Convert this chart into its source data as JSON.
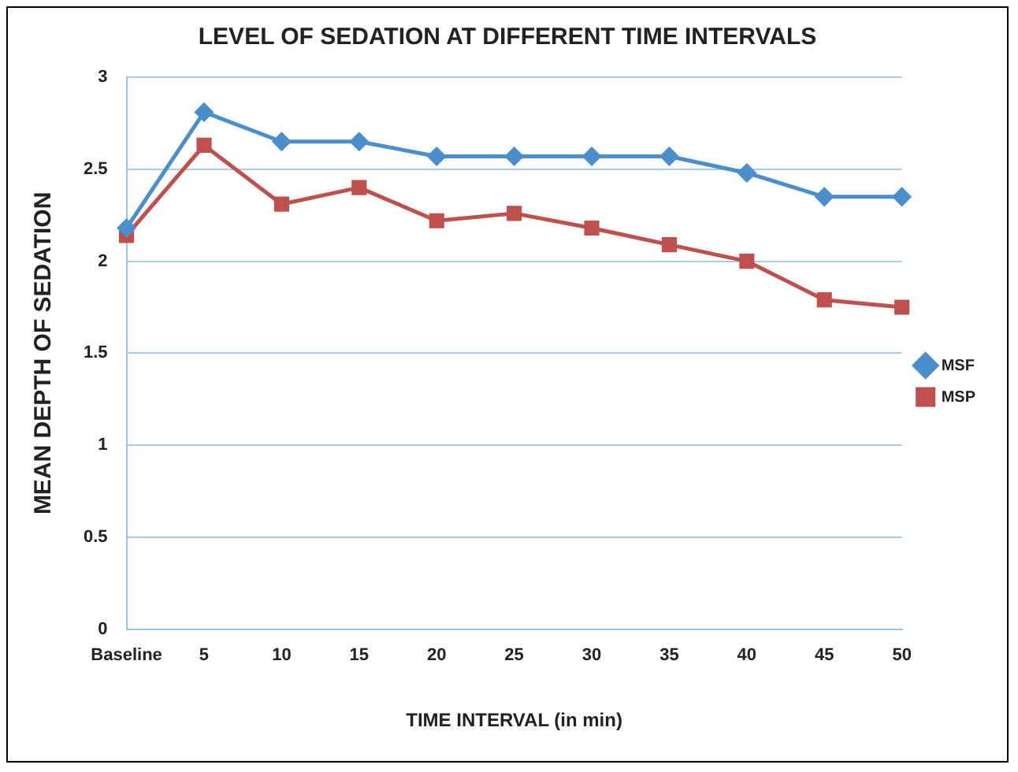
{
  "chart_data": {
    "type": "line",
    "title": "LEVEL OF SEDATION AT DIFFERENT TIME INTERVALS",
    "xlabel": "TIME INTERVAL (in min)",
    "ylabel": "MEAN DEPTH OF SEDATION",
    "categories": [
      "Baseline",
      "5",
      "10",
      "15",
      "20",
      "25",
      "30",
      "35",
      "40",
      "45",
      "50"
    ],
    "series": [
      {
        "name": "MSF",
        "color": "#4a8fcb",
        "marker": "diamond",
        "values": [
          2.18,
          2.81,
          2.65,
          2.65,
          2.57,
          2.57,
          2.57,
          2.57,
          2.48,
          2.35,
          2.35
        ]
      },
      {
        "name": "MSP",
        "color": "#c0504d",
        "marker": "square",
        "values": [
          2.14,
          2.63,
          2.31,
          2.4,
          2.22,
          2.26,
          2.18,
          2.09,
          2.0,
          1.79,
          1.75
        ]
      }
    ],
    "ylim": [
      0,
      3
    ],
    "yticks": [
      0,
      0.5,
      1,
      1.5,
      2,
      2.5,
      3
    ],
    "grid": "y",
    "legend": "right"
  }
}
